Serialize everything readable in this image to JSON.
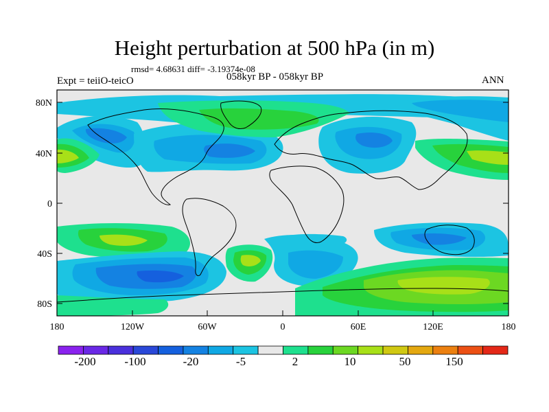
{
  "title": "Height perturbation at 500 hPa (in m)",
  "stats": "rmsd= 4.68631 diff= -3.19374e-08",
  "left_label": "Expt = teiiO-teicO",
  "center_label": "058kyr BP - 058kyr BP",
  "right_label": "ANN",
  "lat_ticks": [
    "80N",
    "40N",
    "0",
    "40S",
    "80S"
  ],
  "lon_ticks": [
    "180",
    "120W",
    "60W",
    "0",
    "60E",
    "120E",
    "180"
  ],
  "colorbar": {
    "labels": [
      "-200",
      "-100",
      "-20",
      "-5",
      "2",
      "10",
      "50",
      "150"
    ],
    "colors": [
      "#8a22ee",
      "#6a28e6",
      "#4a30dc",
      "#2a48d8",
      "#1560de",
      "#1482e2",
      "#10a8e4",
      "#1cc4e2",
      "#e8e8e8",
      "#1ee08e",
      "#28d23c",
      "#6cd822",
      "#a8e018",
      "#d0c812",
      "#e4a810",
      "#ec8010",
      "#ec5014",
      "#e42818"
    ]
  },
  "map_colors": {
    "neutral": "#e8e8e8",
    "blue_weak": "#1cc4e2",
    "blue_mid": "#10a8e4",
    "blue_strong": "#1482e2",
    "blue_deep": "#1560de",
    "green_weak": "#1ee08e",
    "green_mid": "#28d23c",
    "green_strong": "#6cd822",
    "yellow_green": "#a8e018",
    "coast": "#000000"
  }
}
